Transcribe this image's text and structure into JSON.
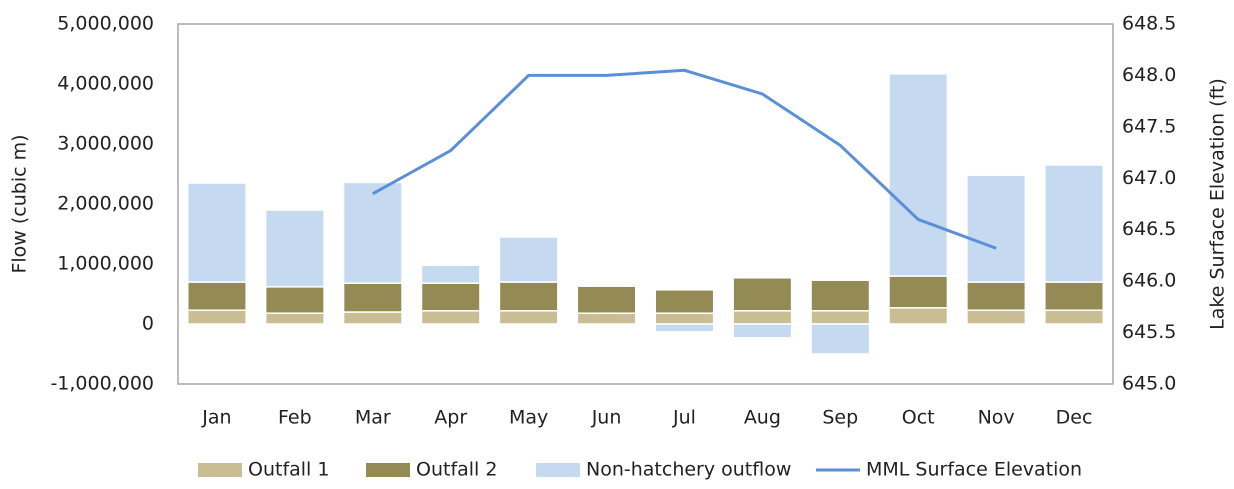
{
  "chart_data": {
    "type": "bar",
    "categories": [
      "Jan",
      "Feb",
      "Mar",
      "Apr",
      "May",
      "Jun",
      "Jul",
      "Aug",
      "Sep",
      "Oct",
      "Nov",
      "Dec"
    ],
    "series": [
      {
        "name": "Outfall 1",
        "color": "#c9bd94",
        "values": [
          230000,
          180000,
          200000,
          220000,
          220000,
          180000,
          180000,
          220000,
          220000,
          270000,
          230000,
          230000
        ]
      },
      {
        "name": "Outfall 2",
        "color": "#948a54",
        "values": [
          470000,
          440000,
          480000,
          460000,
          480000,
          450000,
          390000,
          550000,
          510000,
          530000,
          470000,
          470000
        ]
      },
      {
        "name": "Non-hatchery outflow",
        "color": "#c5d9f1",
        "values": [
          1650000,
          1280000,
          1680000,
          300000,
          750000,
          0,
          -130000,
          -230000,
          -500000,
          3370000,
          1780000,
          1950000
        ]
      },
      {
        "name": "MML Surface Elevation",
        "color": "#5b8fd6",
        "type": "line",
        "axis": "y2",
        "values": [
          null,
          null,
          646.85,
          647.27,
          648.0,
          648.0,
          648.05,
          647.82,
          647.32,
          646.6,
          646.32,
          null
        ]
      }
    ],
    "ylabel": "Flow (cubic m)",
    "y2label": "Lake Surface Elevation (ft)",
    "ylim": [
      -1000000,
      5000000
    ],
    "yticks": [
      {
        "value": -1000000,
        "label": "-1,000,000"
      },
      0,
      {
        "value": 1000000,
        "label": "1,000,000"
      },
      {
        "value": 2000000,
        "label": "2,000,000"
      },
      {
        "value": 3000000,
        "label": "3,000,000"
      },
      {
        "value": 4000000,
        "label": "4,000,000"
      },
      {
        "value": 5000000,
        "label": "5,000,000"
      }
    ],
    "y2lim": [
      645.0,
      648.5
    ],
    "y2ticks": [
      {
        "value": 645.0,
        "label": "645.0"
      },
      645.5,
      {
        "value": 646.0,
        "label": "646.0"
      },
      646.5,
      {
        "value": 647.0,
        "label": "647.0"
      },
      647.5,
      {
        "value": 648.0,
        "label": "648.0"
      },
      648.5
    ],
    "stacked": true,
    "legend": "bottom"
  }
}
